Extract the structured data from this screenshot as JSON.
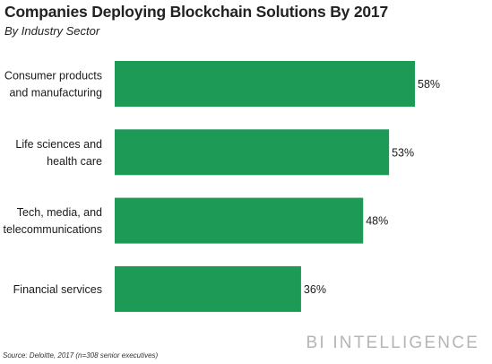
{
  "title": "Companies Deploying Blockchain Solutions By 2017",
  "subtitle": "By Industry Sector",
  "source": "Source: Deloitte, 2017 (n=308 senior executives)",
  "brand": "BI INTELLIGENCE",
  "colors": {
    "bar": "#1e9a57"
  },
  "chart_data": {
    "type": "bar",
    "orientation": "horizontal",
    "categories": [
      [
        "Consumer products",
        "and manufacturing"
      ],
      [
        "Life sciences and",
        "health care"
      ],
      [
        "Tech, media, and",
        "telecommunications"
      ],
      [
        "Financial services"
      ]
    ],
    "values": [
      58,
      53,
      48,
      36
    ],
    "value_labels": [
      "58%",
      "53%",
      "48%",
      "36%"
    ],
    "xlim": [
      0,
      58
    ],
    "grid": false,
    "legend": "none"
  }
}
